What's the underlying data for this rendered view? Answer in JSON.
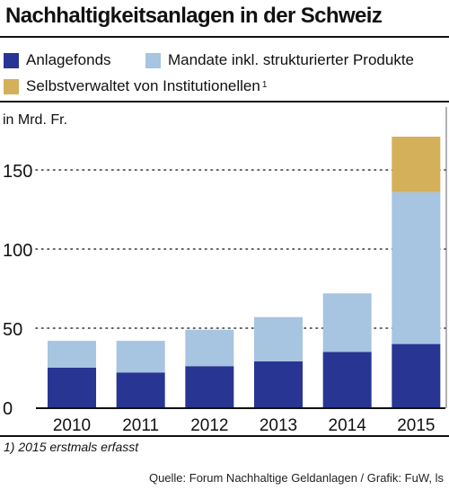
{
  "header": {
    "title": "Nachhaltigkeitsanlagen in der Schweiz"
  },
  "legend": {
    "items": [
      {
        "label": "Anlagefonds",
        "color": "#283593"
      },
      {
        "label": "Mandate inkl. strukturierter Produkte",
        "color": "#a7c4e1"
      },
      {
        "label": "Selbstverwaltet von Institutionellen",
        "color": "#d4b05a",
        "note": "1"
      }
    ]
  },
  "chart_data": {
    "type": "bar",
    "stacked": true,
    "ylabel": "in Mrd. Fr.",
    "categories": [
      "2010",
      "2011",
      "2012",
      "2013",
      "2014",
      "2015"
    ],
    "series": [
      {
        "name": "Anlagefonds",
        "color": "#283593",
        "values": [
          25,
          22,
          26,
          29,
          35,
          40
        ]
      },
      {
        "name": "Mandate inkl. strukturierter Produkte",
        "color": "#a7c4e1",
        "values": [
          17,
          20,
          23,
          28,
          37,
          96
        ]
      },
      {
        "name": "Selbstverwaltet von Institutionellen",
        "color": "#d4b05a",
        "values": [
          0,
          0,
          0,
          0,
          0,
          35
        ]
      }
    ],
    "yticks": [
      0,
      50,
      100,
      150
    ],
    "ylim": [
      0,
      185
    ],
    "grid": "dotted-horizontal",
    "legend_position": "top"
  },
  "footnote": "1) 2015 erstmals erfasst",
  "source": "Quelle: Forum Nachhaltige Geldanlagen / Grafik: FuW, ls"
}
